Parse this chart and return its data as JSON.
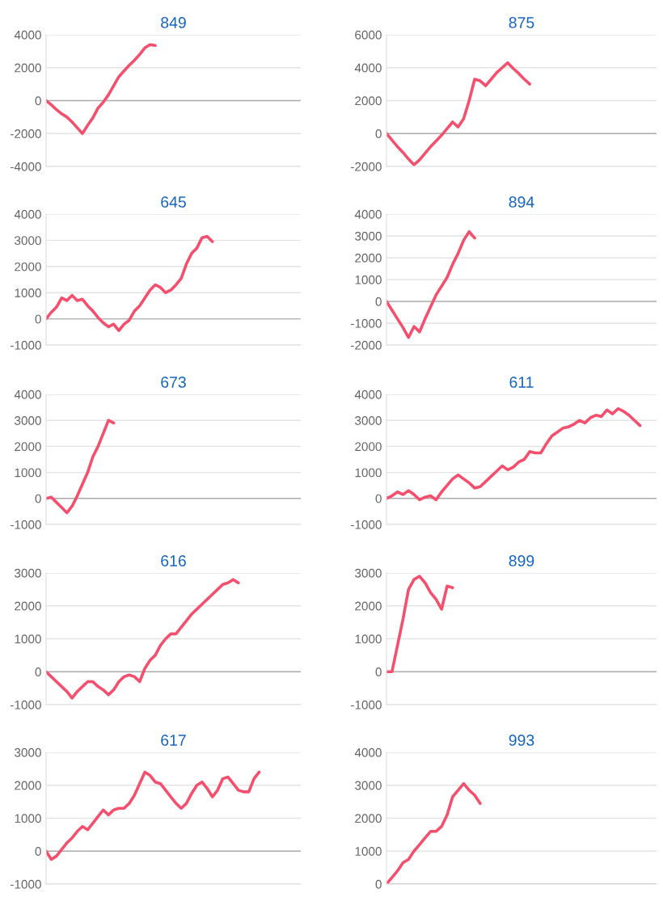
{
  "chart_data": [
    {
      "type": "line",
      "title": "849",
      "categories": [
        null,
        null,
        null,
        null,
        null,
        null,
        null,
        null,
        null,
        null,
        null,
        null,
        null,
        null,
        null,
        null,
        null,
        null,
        null,
        null,
        null,
        null,
        null,
        null,
        null,
        null,
        null,
        null,
        null,
        null,
        null,
        null,
        null,
        null,
        null,
        null,
        null,
        null,
        null,
        null,
        null,
        null,
        null,
        null,
        null,
        null,
        null,
        null,
        null,
        null
      ],
      "ylim": [
        -4000,
        4000
      ],
      "yticks": [
        -4000,
        -2000,
        0,
        2000,
        4000
      ],
      "grid": "y",
      "tick_labels": "y",
      "series": [
        {
          "color": "#f4506e",
          "values": [
            0,
            -250,
            -550,
            -800,
            -1000,
            -1300,
            -1650,
            -2000,
            -1500,
            -1050,
            -450,
            -100,
            350,
            900,
            1450,
            1800,
            2150,
            2450,
            2800,
            3200,
            3400,
            3350,
            null,
            null,
            null,
            null,
            null,
            null,
            null,
            null,
            null,
            null,
            null,
            null,
            null,
            null,
            null,
            null,
            null,
            null,
            null,
            null,
            null,
            null,
            null,
            null,
            null,
            null,
            null,
            null
          ]
        }
      ]
    },
    {
      "type": "line",
      "title": "875",
      "categories": [
        null,
        null,
        null,
        null,
        null,
        null,
        null,
        null,
        null,
        null,
        null,
        null,
        null,
        null,
        null,
        null,
        null,
        null,
        null,
        null,
        null,
        null,
        null,
        null,
        null,
        null,
        null,
        null,
        null,
        null,
        null,
        null,
        null,
        null,
        null,
        null,
        null,
        null,
        null,
        null,
        null,
        null,
        null,
        null,
        null,
        null,
        null,
        null,
        null,
        null
      ],
      "ylim": [
        -2000,
        6000
      ],
      "yticks": [
        -2000,
        0,
        2000,
        4000,
        6000
      ],
      "grid": "y",
      "tick_labels": "y",
      "series": [
        {
          "color": "#f4506e",
          "values": [
            0,
            -400,
            -800,
            -1150,
            -1550,
            -1900,
            -1600,
            -1200,
            -800,
            -450,
            -100,
            300,
            700,
            400,
            900,
            2000,
            3300,
            3200,
            2900,
            3300,
            3700,
            4000,
            4300,
            3950,
            3650,
            3300,
            3000,
            null,
            null,
            null,
            null,
            null,
            null,
            null,
            null,
            null,
            null,
            null,
            null,
            null,
            null,
            null,
            null,
            null,
            null,
            null,
            null,
            null,
            null,
            null
          ]
        }
      ]
    },
    {
      "type": "line",
      "title": "645",
      "categories": [
        null,
        null,
        null,
        null,
        null,
        null,
        null,
        null,
        null,
        null,
        null,
        null,
        null,
        null,
        null,
        null,
        null,
        null,
        null,
        null,
        null,
        null,
        null,
        null,
        null,
        null,
        null,
        null,
        null,
        null,
        null,
        null,
        null,
        null,
        null,
        null,
        null,
        null,
        null,
        null,
        null,
        null,
        null,
        null,
        null,
        null,
        null,
        null,
        null,
        null
      ],
      "ylim": [
        -1000,
        4000
      ],
      "yticks": [
        -1000,
        0,
        1000,
        2000,
        3000,
        4000
      ],
      "grid": "y",
      "tick_labels": "y",
      "series": [
        {
          "color": "#f4506e",
          "values": [
            0,
            250,
            450,
            800,
            700,
            900,
            700,
            750,
            500,
            300,
            50,
            -150,
            -300,
            -200,
            -450,
            -200,
            -50,
            300,
            500,
            800,
            1100,
            1300,
            1200,
            1000,
            1100,
            1300,
            1550,
            2100,
            2500,
            2700,
            3100,
            3150,
            2950,
            null,
            null,
            null,
            null,
            null,
            null,
            null,
            null,
            null,
            null,
            null,
            null,
            null,
            null,
            null,
            null,
            null
          ]
        }
      ]
    },
    {
      "type": "line",
      "title": "894",
      "categories": [
        null,
        null,
        null,
        null,
        null,
        null,
        null,
        null,
        null,
        null,
        null,
        null,
        null,
        null,
        null,
        null,
        null,
        null,
        null,
        null,
        null,
        null,
        null,
        null,
        null,
        null,
        null,
        null,
        null,
        null,
        null,
        null,
        null,
        null,
        null,
        null,
        null,
        null,
        null,
        null,
        null,
        null,
        null,
        null,
        null,
        null,
        null,
        null,
        null,
        null
      ],
      "ylim": [
        -2000,
        4000
      ],
      "yticks": [
        -2000,
        -1000,
        0,
        1000,
        2000,
        3000,
        4000
      ],
      "grid": "y",
      "tick_labels": "y",
      "series": [
        {
          "color": "#f4506e",
          "values": [
            0,
            -400,
            -800,
            -1200,
            -1650,
            -1150,
            -1400,
            -800,
            -250,
            300,
            700,
            1100,
            1700,
            2200,
            2800,
            3200,
            2900,
            null,
            null,
            null,
            null,
            null,
            null,
            null,
            null,
            null,
            null,
            null,
            null,
            null,
            null,
            null,
            null,
            null,
            null,
            null,
            null,
            null,
            null,
            null,
            null,
            null,
            null,
            null,
            null,
            null,
            null,
            null,
            null,
            null
          ]
        }
      ]
    },
    {
      "type": "line",
      "title": "673",
      "categories": [
        null,
        null,
        null,
        null,
        null,
        null,
        null,
        null,
        null,
        null,
        null,
        null,
        null,
        null,
        null,
        null,
        null,
        null,
        null,
        null,
        null,
        null,
        null,
        null,
        null,
        null,
        null,
        null,
        null,
        null,
        null,
        null,
        null,
        null,
        null,
        null,
        null,
        null,
        null,
        null,
        null,
        null,
        null,
        null,
        null,
        null,
        null,
        null,
        null,
        null
      ],
      "ylim": [
        -1000,
        4000
      ],
      "yticks": [
        -1000,
        0,
        1000,
        2000,
        3000,
        4000
      ],
      "grid": "y",
      "tick_labels": "y",
      "series": [
        {
          "color": "#f4506e",
          "values": [
            0,
            50,
            -150,
            -350,
            -550,
            -300,
            100,
            550,
            1000,
            1600,
            2000,
            2500,
            3000,
            2900,
            null,
            null,
            null,
            null,
            null,
            null,
            null,
            null,
            null,
            null,
            null,
            null,
            null,
            null,
            null,
            null,
            null,
            null,
            null,
            null,
            null,
            null,
            null,
            null,
            null,
            null,
            null,
            null,
            null,
            null,
            null,
            null,
            null,
            null,
            null,
            null
          ]
        }
      ]
    },
    {
      "type": "line",
      "title": "611",
      "categories": [
        null,
        null,
        null,
        null,
        null,
        null,
        null,
        null,
        null,
        null,
        null,
        null,
        null,
        null,
        null,
        null,
        null,
        null,
        null,
        null,
        null,
        null,
        null,
        null,
        null,
        null,
        null,
        null,
        null,
        null,
        null,
        null,
        null,
        null,
        null,
        null,
        null,
        null,
        null,
        null,
        null,
        null,
        null,
        null,
        null,
        null,
        null,
        null,
        null,
        null
      ],
      "ylim": [
        -1000,
        4000
      ],
      "yticks": [
        -1000,
        0,
        1000,
        2000,
        3000,
        4000
      ],
      "grid": "y",
      "tick_labels": "y",
      "series": [
        {
          "color": "#f4506e",
          "values": [
            0,
            100,
            250,
            150,
            300,
            150,
            -50,
            50,
            100,
            -50,
            250,
            500,
            750,
            900,
            750,
            600,
            400,
            450,
            650,
            850,
            1050,
            1250,
            1100,
            1200,
            1400,
            1500,
            1800,
            1750,
            1750,
            2100,
            2400,
            2550,
            2700,
            2750,
            2850,
            3000,
            2900,
            3100,
            3200,
            3150,
            3400,
            3250,
            3450,
            3350,
            3200,
            3000,
            2800,
            null,
            null,
            null
          ]
        }
      ]
    },
    {
      "type": "line",
      "title": "616",
      "categories": [
        null,
        null,
        null,
        null,
        null,
        null,
        null,
        null,
        null,
        null,
        null,
        null,
        null,
        null,
        null,
        null,
        null,
        null,
        null,
        null,
        null,
        null,
        null,
        null,
        null,
        null,
        null,
        null,
        null,
        null,
        null,
        null,
        null,
        null,
        null,
        null,
        null,
        null,
        null,
        null,
        null,
        null,
        null,
        null,
        null,
        null,
        null,
        null,
        null,
        null
      ],
      "ylim": [
        -1000,
        3000
      ],
      "yticks": [
        -1000,
        0,
        1000,
        2000,
        3000
      ],
      "grid": "y",
      "tick_labels": "y",
      "series": [
        {
          "color": "#f4506e",
          "values": [
            0,
            -150,
            -300,
            -450,
            -600,
            -800,
            -600,
            -450,
            -300,
            -300,
            -450,
            -550,
            -700,
            -550,
            -300,
            -150,
            -100,
            -150,
            -300,
            100,
            350,
            500,
            800,
            1000,
            1150,
            1150,
            1350,
            1550,
            1750,
            1900,
            2050,
            2200,
            2350,
            2500,
            2650,
            2700,
            2800,
            2700,
            null,
            null,
            null,
            null,
            null,
            null,
            null,
            null,
            null,
            null,
            null,
            null
          ]
        }
      ]
    },
    {
      "type": "line",
      "title": "899",
      "categories": [
        null,
        null,
        null,
        null,
        null,
        null,
        null,
        null,
        null,
        null,
        null,
        null,
        null,
        null,
        null,
        null,
        null,
        null,
        null,
        null,
        null,
        null,
        null,
        null,
        null,
        null,
        null,
        null,
        null,
        null,
        null,
        null,
        null,
        null,
        null,
        null,
        null,
        null,
        null,
        null,
        null,
        null,
        null,
        null,
        null,
        null,
        null,
        null,
        null,
        null
      ],
      "ylim": [
        -1000,
        3000
      ],
      "yticks": [
        -1000,
        0,
        1000,
        2000,
        3000
      ],
      "grid": "y",
      "tick_labels": "y",
      "series": [
        {
          "color": "#f4506e",
          "values": [
            0,
            0,
            800,
            1600,
            2500,
            2800,
            2900,
            2700,
            2400,
            2200,
            1900,
            2600,
            2550,
            null,
            null,
            null,
            null,
            null,
            null,
            null,
            null,
            null,
            null,
            null,
            null,
            null,
            null,
            null,
            null,
            null,
            null,
            null,
            null,
            null,
            null,
            null,
            null,
            null,
            null,
            null,
            null,
            null,
            null,
            null,
            null,
            null,
            null,
            null,
            null,
            null
          ]
        }
      ]
    },
    {
      "type": "line",
      "title": "617",
      "categories": [
        null,
        null,
        null,
        null,
        null,
        null,
        null,
        null,
        null,
        null,
        null,
        null,
        null,
        null,
        null,
        null,
        null,
        null,
        null,
        null,
        null,
        null,
        null,
        null,
        null,
        null,
        null,
        null,
        null,
        null,
        null,
        null,
        null,
        null,
        null,
        null,
        null,
        null,
        null,
        null,
        null,
        null,
        null,
        null,
        null,
        null,
        null,
        null,
        null,
        null
      ],
      "ylim": [
        -1000,
        3000
      ],
      "yticks": [
        -1000,
        0,
        1000,
        2000,
        3000
      ],
      "grid": "y",
      "tick_labels": "y",
      "series": [
        {
          "color": "#f4506e",
          "values": [
            0,
            -250,
            -150,
            50,
            250,
            400,
            600,
            750,
            650,
            850,
            1050,
            1250,
            1100,
            1250,
            1300,
            1300,
            1450,
            1700,
            2050,
            2400,
            2300,
            2100,
            2050,
            1850,
            1650,
            1450,
            1300,
            1450,
            1750,
            2000,
            2100,
            1900,
            1650,
            1850,
            2200,
            2250,
            2050,
            1850,
            1800,
            1800,
            2200,
            2400,
            null,
            null,
            null,
            null,
            null,
            null,
            null,
            null
          ]
        }
      ]
    },
    {
      "type": "line",
      "title": "993",
      "categories": [
        null,
        null,
        null,
        null,
        null,
        null,
        null,
        null,
        null,
        null,
        null,
        null,
        null,
        null,
        null,
        null,
        null,
        null,
        null,
        null,
        null,
        null,
        null,
        null,
        null,
        null,
        null,
        null,
        null,
        null,
        null,
        null,
        null,
        null,
        null,
        null,
        null,
        null,
        null,
        null,
        null,
        null,
        null,
        null,
        null,
        null,
        null,
        null,
        null,
        null
      ],
      "ylim": [
        0,
        4000
      ],
      "yticks": [
        0,
        1000,
        2000,
        3000,
        4000
      ],
      "grid": "y",
      "tick_labels": "y",
      "series": [
        {
          "color": "#f4506e",
          "values": [
            0,
            200,
            400,
            650,
            750,
            1000,
            1200,
            1400,
            1600,
            1600,
            1750,
            2100,
            2650,
            2850,
            3050,
            2850,
            2700,
            2450,
            null,
            null,
            null,
            null,
            null,
            null,
            null,
            null,
            null,
            null,
            null,
            null,
            null,
            null,
            null,
            null,
            null,
            null,
            null,
            null,
            null,
            null,
            null,
            null,
            null,
            null,
            null,
            null,
            null,
            null,
            null,
            null
          ]
        }
      ]
    }
  ]
}
